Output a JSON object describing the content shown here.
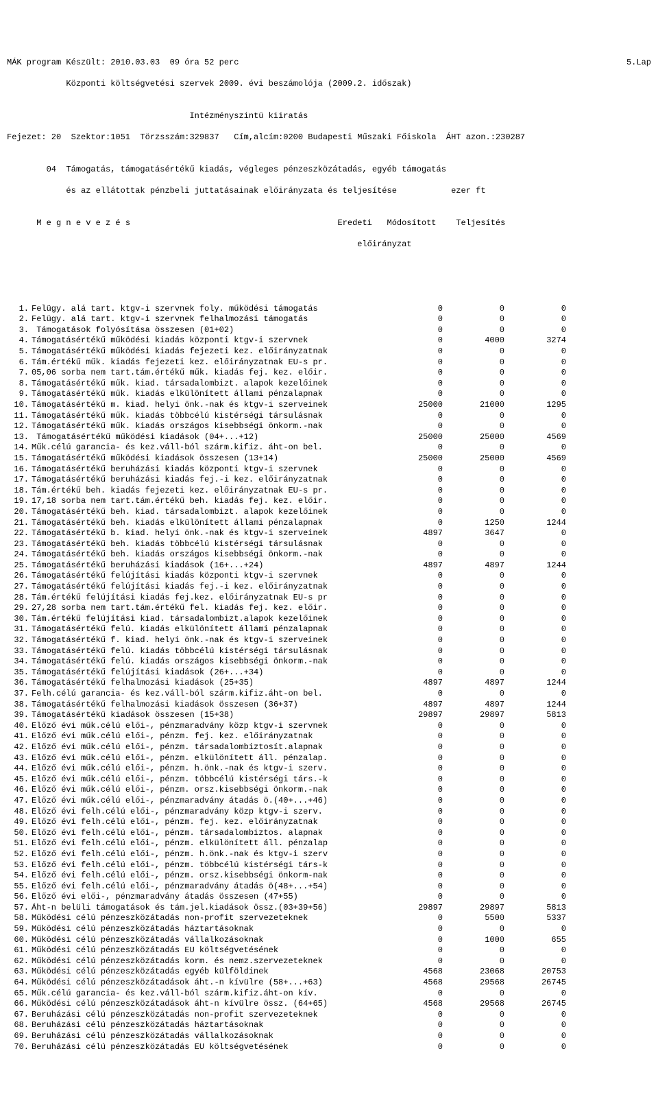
{
  "header": {
    "line1_left": "MÁK program Készült: 2010.03.03  09 óra 52 perc",
    "line1_right": "5.Lap",
    "line2": "            Központi költségvetési szervek 2009. évi beszámolója (2009.2. időszak)",
    "line3": "",
    "line4": "                                     Intézményszintü kiiratás",
    "line5": "Fejezet: 20  Szektor:1051  Törzsszám:329837   Cím,alcím:0200 Budapesti Műszaki Főiskola  ÁHT azon.:230287",
    "line6": "",
    "line7": "        04  Támogatás, támogatásértékű kiadás, végleges pénzeszközátadás, egyéb támogatás",
    "line8": "            és az ellátottak pénzbeli juttatásainak előirányzata és teljesítése           ezer ft",
    "line9": "",
    "colhead1": "      M e g n e v e z é s                                          Eredeti   Módosított    Teljesítés",
    "colhead2": "                                                                       előirányzat"
  },
  "rows": [
    {
      "n": "1.",
      "d": "Felügy. alá tart. ktgv-i szervnek foly. működési támogatás",
      "a": "0",
      "b": "0",
      "c": "0"
    },
    {
      "n": "2.",
      "d": "Felügy. alá tart. ktgv-i szervnek felhalmozási támogatás",
      "a": "0",
      "b": "0",
      "c": "0"
    },
    {
      "n": "3.",
      "d": " Támogatások folyósítása összesen (01+02)",
      "a": "0",
      "b": "0",
      "c": "0"
    },
    {
      "n": "4.",
      "d": "Támogatásértékű működési kiadás központi ktgv-i szervnek",
      "a": "0",
      "b": "4000",
      "c": "3274"
    },
    {
      "n": "5.",
      "d": "Támogatásértékű működési kiadás fejezeti kez. előirányzatnak",
      "a": "0",
      "b": "0",
      "c": "0"
    },
    {
      "n": "6.",
      "d": "Tám.értékű műk. kiadás fejezeti kez. előirányzatnak EU-s pr.",
      "a": "0",
      "b": "0",
      "c": "0"
    },
    {
      "n": "7.",
      "d": "05,06 sorba nem tart.tám.értékű műk. kiadás fej. kez. előir.",
      "a": "0",
      "b": "0",
      "c": "0"
    },
    {
      "n": "8.",
      "d": "Támogatásértékű műk. kiad. társadalombizt. alapok kezelőinek",
      "a": "0",
      "b": "0",
      "c": "0"
    },
    {
      "n": "9.",
      "d": "Támogatásértékű műk. kiadás elkülönített állami pénzalapnak",
      "a": "0",
      "b": "0",
      "c": "0"
    },
    {
      "n": "10.",
      "d": "Támogatásértékű m. kiad. helyi önk.-nak és ktgv-i szerveinek",
      "a": "25000",
      "b": "21000",
      "c": "1295"
    },
    {
      "n": "11.",
      "d": "Támogatásértékű műk. kiadás többcélú kistérségi társulásnak",
      "a": "0",
      "b": "0",
      "c": "0"
    },
    {
      "n": "12.",
      "d": "Támogatásértékű műk. kiadás országos kisebbségi önkorm.-nak",
      "a": "0",
      "b": "0",
      "c": "0"
    },
    {
      "n": "13.",
      "d": " Támogatásértékű működési kiadások (04+...+12)",
      "a": "25000",
      "b": "25000",
      "c": "4569"
    },
    {
      "n": "14.",
      "d": "Műk.célú garancia- és kez.váll-ból szárm.kifiz. áht-on bel.",
      "a": "0",
      "b": "0",
      "c": "0"
    },
    {
      "n": "15.",
      "d": "Támogatásértékű működési kiadások összesen (13+14)",
      "a": "25000",
      "b": "25000",
      "c": "4569"
    },
    {
      "n": "16.",
      "d": "Támogatásértékű beruházási kiadás központi ktgv-i szervnek",
      "a": "0",
      "b": "0",
      "c": "0"
    },
    {
      "n": "17.",
      "d": "Támogatásértékű beruházási kiadás fej.-i kez. előirányzatnak",
      "a": "0",
      "b": "0",
      "c": "0"
    },
    {
      "n": "18.",
      "d": "Tám.értékű beh. kiadás fejezeti kez. előirányzatnak EU-s pr.",
      "a": "0",
      "b": "0",
      "c": "0"
    },
    {
      "n": "19.",
      "d": "17,18 sorba nem tart.tám.értékű beh. kiadás fej. kez. előir.",
      "a": "0",
      "b": "0",
      "c": "0"
    },
    {
      "n": "20.",
      "d": "Támogatásértékű beh. kiad. társadalombizt. alapok kezelőinek",
      "a": "0",
      "b": "0",
      "c": "0"
    },
    {
      "n": "21.",
      "d": "Támogatásértékű beh. kiadás elkülönített állami pénzalapnak",
      "a": "0",
      "b": "1250",
      "c": "1244"
    },
    {
      "n": "22.",
      "d": "Támogatásértékű b. kiad. helyi önk.-nak és ktgv-i szerveinek",
      "a": "4897",
      "b": "3647",
      "c": "0"
    },
    {
      "n": "23.",
      "d": "Támogatásértékű beh. kiadás többcélú kistérségi társulásnak",
      "a": "0",
      "b": "0",
      "c": "0"
    },
    {
      "n": "24.",
      "d": "Támogatásértékű beh. kiadás országos kisebbségi önkorm.-nak",
      "a": "0",
      "b": "0",
      "c": "0"
    },
    {
      "n": "25.",
      "d": "Támogatásértékű beruházási kiadások (16+...+24)",
      "a": "4897",
      "b": "4897",
      "c": "1244"
    },
    {
      "n": "26.",
      "d": "Támogatásértékű felújítási kiadás központi ktgv-i szervnek",
      "a": "0",
      "b": "0",
      "c": "0"
    },
    {
      "n": "27.",
      "d": "Támogatásértékű felújítási kiadás fej.-i kez. előirányzatnak",
      "a": "0",
      "b": "0",
      "c": "0"
    },
    {
      "n": "28.",
      "d": "Tám.értékű felújítási kiadás fej.kez. előirányzatnak EU-s pr",
      "a": "0",
      "b": "0",
      "c": "0"
    },
    {
      "n": "29.",
      "d": "27,28 sorba nem tart.tám.értékű fel. kiadás fej. kez. előir.",
      "a": "0",
      "b": "0",
      "c": "0"
    },
    {
      "n": "30.",
      "d": "Tám.értékű felújítási kiad. társadalombizt.alapok kezelőinek",
      "a": "0",
      "b": "0",
      "c": "0"
    },
    {
      "n": "31.",
      "d": "Támogatásértékű felú. kiadás elkülönített állami pénzalapnak",
      "a": "0",
      "b": "0",
      "c": "0"
    },
    {
      "n": "32.",
      "d": "Támogatásértékű f. kiad. helyi önk.-nak és ktgv-i szerveinek",
      "a": "0",
      "b": "0",
      "c": "0"
    },
    {
      "n": "33.",
      "d": "Támogatásértékű felú. kiadás többcélú kistérségi társulásnak",
      "a": "0",
      "b": "0",
      "c": "0"
    },
    {
      "n": "34.",
      "d": "Támogatásértékű felú. kiadás országos kisebbségi önkorm.-nak",
      "a": "0",
      "b": "0",
      "c": "0"
    },
    {
      "n": "35.",
      "d": "Támogatásértékű felújítási kiadások (26+...+34)",
      "a": "0",
      "b": "0",
      "c": "0"
    },
    {
      "n": "36.",
      "d": "Támogatásértékű felhalmozási kiadások (25+35)",
      "a": "4897",
      "b": "4897",
      "c": "1244"
    },
    {
      "n": "37.",
      "d": "Felh.célú garancia- és kez.váll-ból szárm.kifiz.áht-on bel.",
      "a": "0",
      "b": "0",
      "c": "0"
    },
    {
      "n": "38.",
      "d": "Támogatásértékű felhalmozási kiadások összesen (36+37)",
      "a": "4897",
      "b": "4897",
      "c": "1244"
    },
    {
      "n": "39.",
      "d": "Támogatásértékű kiadások összesen (15+38)",
      "a": "29897",
      "b": "29897",
      "c": "5813"
    },
    {
      "n": "40.",
      "d": "Előző évi műk.célú elői-, pénzmaradvány közp ktgv-i szervnek",
      "a": "0",
      "b": "0",
      "c": "0"
    },
    {
      "n": "41.",
      "d": "Előző évi műk.célú elői-, pénzm. fej. kez. előirányzatnak",
      "a": "0",
      "b": "0",
      "c": "0"
    },
    {
      "n": "42.",
      "d": "Előző évi műk.célú elői-, pénzm. társadalombiztosít.alapnak",
      "a": "0",
      "b": "0",
      "c": "0"
    },
    {
      "n": "43.",
      "d": "Előző évi műk.célú elői-, pénzm. elkülönített áll. pénzalap.",
      "a": "0",
      "b": "0",
      "c": "0"
    },
    {
      "n": "44.",
      "d": "Előző évi műk.célú elői-, pénzm. h.önk.-nak és ktgv-i szerv.",
      "a": "0",
      "b": "0",
      "c": "0"
    },
    {
      "n": "45.",
      "d": "Előző évi műk.célú elői-, pénzm. többcélú kistérségi társ.-k",
      "a": "0",
      "b": "0",
      "c": "0"
    },
    {
      "n": "46.",
      "d": "Előző évi műk.célú elői-, pénzm. orsz.kisebbségi önkorm.-nak",
      "a": "0",
      "b": "0",
      "c": "0"
    },
    {
      "n": "47.",
      "d": "Előző évi műk.célú elői-, pénzmaradvány átadás ö.(40+...+46)",
      "a": "0",
      "b": "0",
      "c": "0"
    },
    {
      "n": "48.",
      "d": "Előző évi felh.célú elői-, pénzmaradvány közp ktgv-i szerv.",
      "a": "0",
      "b": "0",
      "c": "0"
    },
    {
      "n": "49.",
      "d": "Előző évi felh.célú elői-, pénzm. fej. kez. előirányzatnak",
      "a": "0",
      "b": "0",
      "c": "0"
    },
    {
      "n": "50.",
      "d": "Előző évi felh.célú elői-, pénzm. társadalombiztos. alapnak",
      "a": "0",
      "b": "0",
      "c": "0"
    },
    {
      "n": "51.",
      "d": "Előző évi felh.célú elői-, pénzm. elkülönített áll. pénzalap",
      "a": "0",
      "b": "0",
      "c": "0"
    },
    {
      "n": "52.",
      "d": "Előző évi felh.célú elői-, pénzm. h.önk.-nak és ktgv-i szerv",
      "a": "0",
      "b": "0",
      "c": "0"
    },
    {
      "n": "53.",
      "d": "Előző évi felh.célú elői-, pénzm. többcélú kistérségi társ-k",
      "a": "0",
      "b": "0",
      "c": "0"
    },
    {
      "n": "54.",
      "d": "Előző évi felh.célú elői-, pénzm. orsz.kisebbségi önkorm-nak",
      "a": "0",
      "b": "0",
      "c": "0"
    },
    {
      "n": "55.",
      "d": "Előző évi felh.célú elői-, pénzmaradvány átadás ö(48+...+54)",
      "a": "0",
      "b": "0",
      "c": "0"
    },
    {
      "n": "56.",
      "d": "Előző évi elői-, pénzmaradvány átadás összesen (47+55)",
      "a": "0",
      "b": "0",
      "c": "0"
    },
    {
      "n": "57.",
      "d": "Áht-n belüli támogatások és tám.jel.kiadások össz.(03+39+56)",
      "a": "29897",
      "b": "29897",
      "c": "5813"
    },
    {
      "n": "58.",
      "d": "Működési célú pénzeszközátadás non-profit szervezeteknek",
      "a": "0",
      "b": "5500",
      "c": "5337"
    },
    {
      "n": "59.",
      "d": "Működési célú pénzeszközátadás háztartásoknak",
      "a": "0",
      "b": "0",
      "c": "0"
    },
    {
      "n": "60.",
      "d": "Működési célú pénzeszközátadás vállalkozásoknak",
      "a": "0",
      "b": "1000",
      "c": "655"
    },
    {
      "n": "61.",
      "d": "Működési célú pénzeszközátadás EU költségvetésének",
      "a": "0",
      "b": "0",
      "c": "0"
    },
    {
      "n": "62.",
      "d": "Működési célú pénzeszközátadás korm. és nemz.szervezeteknek",
      "a": "0",
      "b": "0",
      "c": "0"
    },
    {
      "n": "63.",
      "d": "Működési célú pénzeszközátadás egyéb külföldinek",
      "a": "4568",
      "b": "23068",
      "c": "20753"
    },
    {
      "n": "64.",
      "d": "Működési célú pénzeszközátadások áht.-n kívülre (58+...+63)",
      "a": "4568",
      "b": "29568",
      "c": "26745"
    },
    {
      "n": "65.",
      "d": "Műk.célú garancia- és kez.váll-ból szárm.kifiz.áht-on kív.",
      "a": "0",
      "b": "0",
      "c": "0"
    },
    {
      "n": "66.",
      "d": "Működési célú pénzeszközátadások áht-n kívülre össz. (64+65)",
      "a": "4568",
      "b": "29568",
      "c": "26745"
    },
    {
      "n": "67.",
      "d": "Beruházási célú pénzeszközátadás non-profit szervezeteknek",
      "a": "0",
      "b": "0",
      "c": "0"
    },
    {
      "n": "68.",
      "d": "Beruházási célú pénzeszközátadás háztartásoknak",
      "a": "0",
      "b": "0",
      "c": "0"
    },
    {
      "n": "69.",
      "d": "Beruházási célú pénzeszközátadás vállalkozásoknak",
      "a": "0",
      "b": "0",
      "c": "0"
    },
    {
      "n": "70.",
      "d": "Beruházási célú pénzeszközátadás EU költségvetésének",
      "a": "0",
      "b": "0",
      "c": "0"
    }
  ]
}
